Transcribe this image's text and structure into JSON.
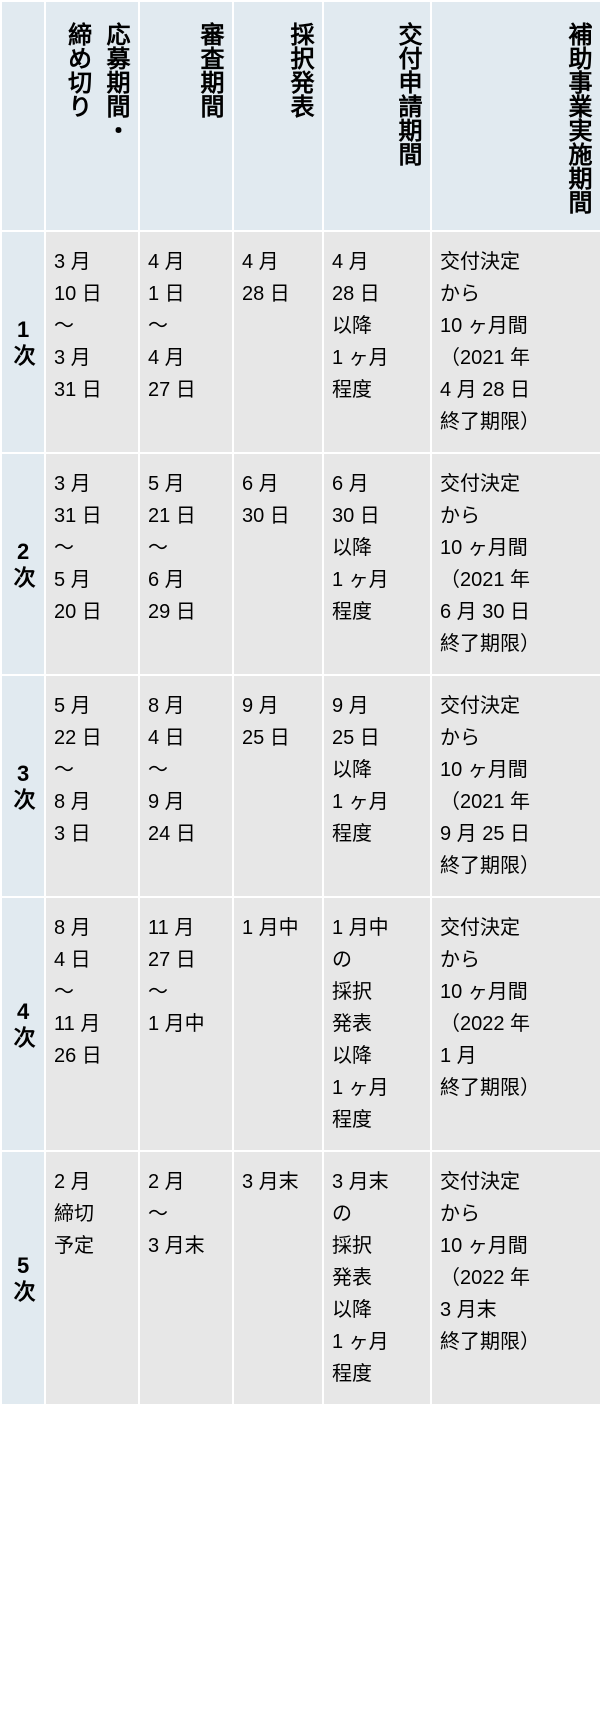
{
  "table": {
    "colors": {
      "header_bg": "#e1eaf0",
      "cell_bg": "#e7e7e7",
      "border": "#ffffff",
      "text": "#000000"
    },
    "columns": [
      "",
      "応募期間・締め切り",
      "審査期間",
      "採択発表",
      "交付申請期間",
      "補助事業実施期間"
    ],
    "rows": [
      {
        "label": "1次",
        "cells": [
          "3 月\n10 日\n～\n3 月\n31 日",
          "4 月\n1 日\n～\n4 月\n27 日",
          "4 月\n28 日",
          "4 月\n28 日\n以降\n1 ヶ月\n程度",
          "交付決定\nから\n10 ヶ月間\n（2021 年\n4 月 28 日\n終了期限）"
        ]
      },
      {
        "label": "2次",
        "cells": [
          "3 月\n31 日\n～\n5 月\n20 日",
          "5 月\n21 日\n～\n6 月\n29 日",
          "6 月\n30 日",
          "6 月\n30 日\n以降\n1 ヶ月\n程度",
          "交付決定\nから\n10 ヶ月間\n（2021 年\n6 月 30 日\n終了期限）"
        ]
      },
      {
        "label": "3次",
        "cells": [
          "5 月\n22 日\n～\n8 月\n3 日",
          "8 月\n4 日\n～\n9 月\n24 日",
          "9 月\n25 日",
          "9 月\n25 日\n以降\n1 ヶ月\n程度",
          "交付決定\nから\n10 ヶ月間\n（2021 年\n9 月 25 日\n終了期限）"
        ]
      },
      {
        "label": "4次",
        "cells": [
          "8 月\n4 日\n～\n11 月\n26 日",
          "11 月\n27 日\n～\n1 月中",
          "1 月中",
          "1 月中\nの\n採択\n発表\n以降\n1 ヶ月\n程度",
          "交付決定\nから\n10 ヶ月間\n（2022 年\n1 月\n終了期限）"
        ]
      },
      {
        "label": "5次",
        "cells": [
          "2 月\n締切\n予定",
          "2 月\n～\n3 月末",
          "3 月末",
          "3 月末\nの\n採択\n発表\n以降\n1 ヶ月\n程度",
          "交付決定\nから\n10 ヶ月間\n（2022 年\n3 月末\n終了期限）"
        ]
      }
    ]
  }
}
